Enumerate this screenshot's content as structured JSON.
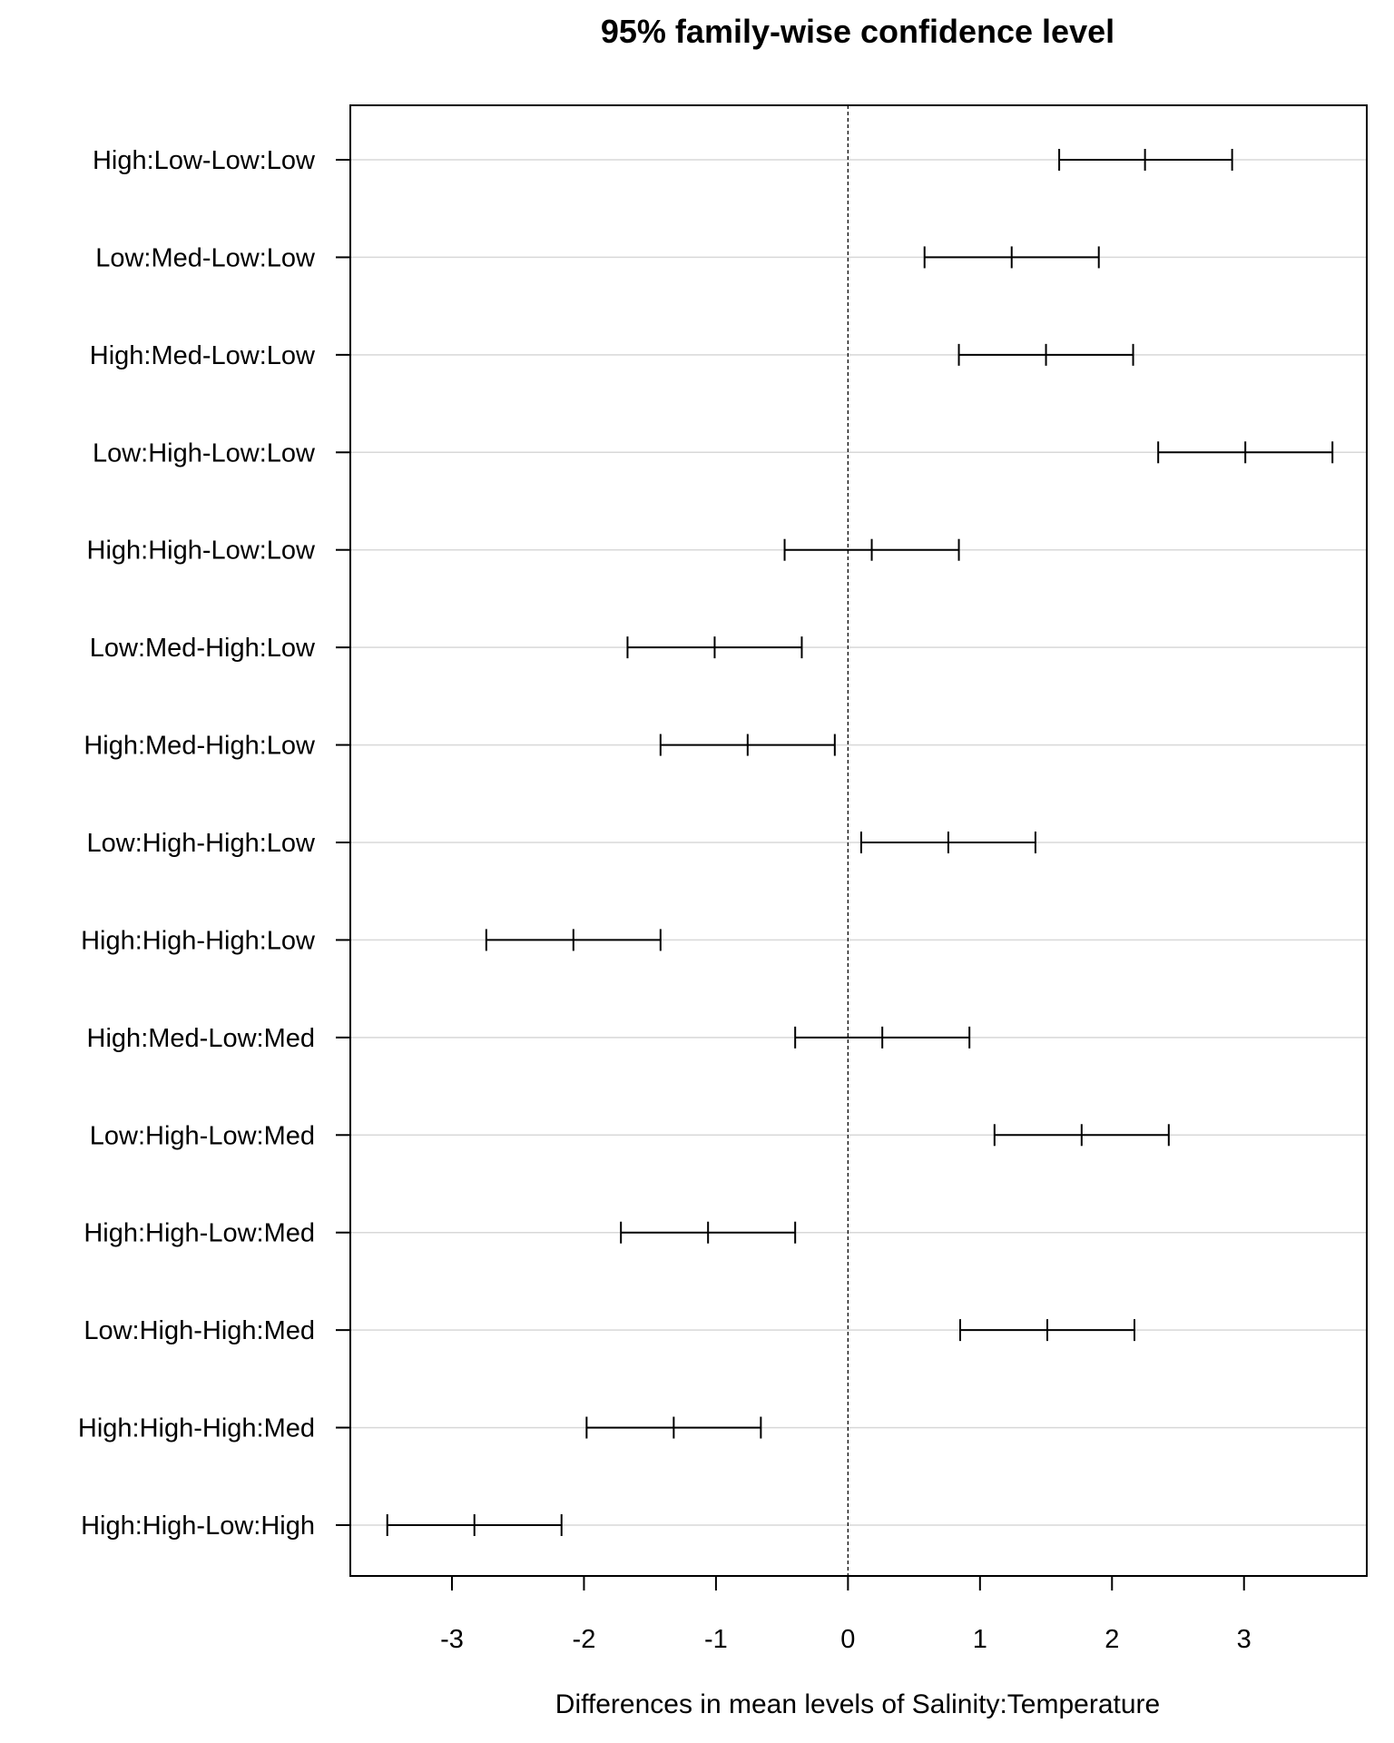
{
  "chart_data": {
    "type": "errorbar",
    "title": "95% family-wise confidence level",
    "xlabel": "Differences in mean levels of Salinity:Temperature",
    "ylabel": "",
    "xlim": [
      -3.77,
      3.93
    ],
    "xticks": [
      -3,
      -2,
      -1,
      0,
      1,
      2,
      3
    ],
    "xtick_labels": [
      "-3",
      "-2",
      "-1",
      "0",
      "1",
      "2",
      "3"
    ],
    "reference_line": 0,
    "grid": "horizontal",
    "categories": [
      "High:Low-Low:Low",
      "Low:Med-Low:Low",
      "High:Med-Low:Low",
      "Low:High-Low:Low",
      "High:High-Low:Low",
      "Low:Med-High:Low",
      "High:Med-High:Low",
      "Low:High-High:Low",
      "High:High-High:Low",
      "High:Med-Low:Med",
      "Low:High-Low:Med",
      "High:High-Low:Med",
      "Low:High-High:Med",
      "High:High-High:Med",
      "High:High-Low:High"
    ],
    "diff": [
      2.25,
      1.24,
      1.5,
      3.01,
      0.18,
      -1.01,
      -0.76,
      0.76,
      -2.08,
      0.26,
      1.77,
      -1.06,
      1.51,
      -1.32,
      -2.83
    ],
    "lower": [
      1.6,
      0.58,
      0.84,
      2.35,
      -0.48,
      -1.67,
      -1.42,
      0.1,
      -2.74,
      -0.4,
      1.11,
      -1.72,
      0.85,
      -1.98,
      -3.49
    ],
    "upper": [
      2.91,
      1.9,
      2.16,
      3.67,
      0.84,
      -0.35,
      -0.1,
      1.42,
      -1.42,
      0.92,
      2.43,
      -0.4,
      2.17,
      -0.66,
      -2.17
    ]
  }
}
